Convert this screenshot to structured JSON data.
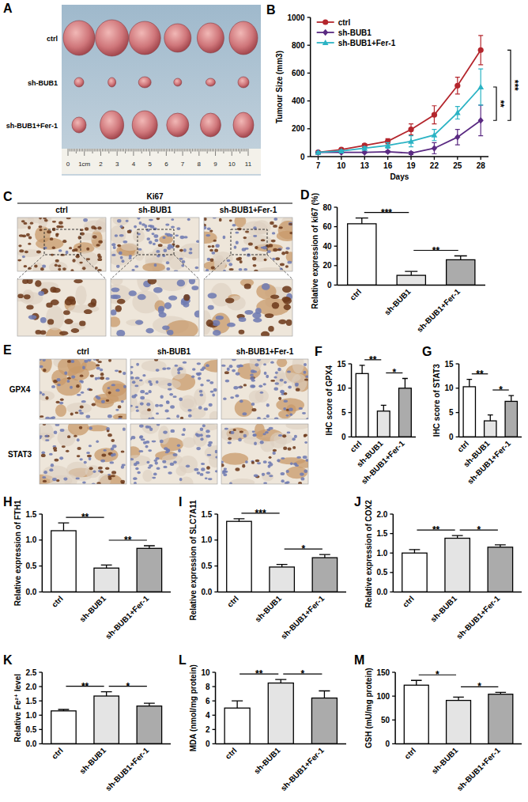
{
  "chart_data": [
    {
      "panel": "B",
      "type": "line",
      "xlabel": "Days",
      "ylabel": "Tumour Size (mm3)",
      "x": [
        7,
        10,
        13,
        16,
        19,
        22,
        25,
        28
      ],
      "xlim": [
        6,
        29
      ],
      "xticks": [
        7,
        10,
        13,
        16,
        19,
        22,
        25,
        28
      ],
      "ylim": [
        0,
        1000
      ],
      "yticks": [
        0,
        200,
        400,
        600,
        800,
        1000
      ],
      "legend": "top-left",
      "series": [
        {
          "name": "ctrl",
          "color": "#b4262d",
          "marker": "circle",
          "values": [
            30,
            50,
            80,
            110,
            195,
            300,
            510,
            765
          ],
          "errors": [
            8,
            10,
            12,
            18,
            40,
            65,
            60,
            105
          ]
        },
        {
          "name": "sh-BUB1",
          "color": "#5a2a82",
          "marker": "diamond",
          "values": [
            30,
            30,
            30,
            35,
            25,
            60,
            140,
            260
          ],
          "errors": [
            5,
            5,
            5,
            8,
            10,
            40,
            55,
            110
          ]
        },
        {
          "name": "sh-BUB1+Fer-1",
          "color": "#2bb3c4",
          "marker": "triangle",
          "values": [
            30,
            40,
            60,
            80,
            110,
            155,
            315,
            500
          ],
          "errors": [
            6,
            8,
            12,
            20,
            40,
            40,
            45,
            130
          ]
        }
      ],
      "annotations": [
        {
          "label": "**",
          "between": [
            "sh-BUB1",
            "sh-BUB1+Fer-1"
          ]
        },
        {
          "label": "***",
          "between": [
            "ctrl",
            "sh-BUB1"
          ]
        }
      ]
    },
    {
      "panel": "D",
      "type": "bar",
      "ylabel": "Relative expression of ki67 (%)",
      "categories": [
        "ctrl",
        "sh-BUB1",
        "sh-BUB1+Fer-1"
      ],
      "values": [
        63,
        10,
        26
      ],
      "errors": [
        6,
        4,
        4
      ],
      "colors": [
        "#ffffff",
        "#e4e4e4",
        "#ababab"
      ],
      "ylim": [
        0,
        80
      ],
      "yticks": [
        0,
        20,
        40,
        60,
        80
      ],
      "annotations": [
        {
          "label": "***",
          "between": [
            "ctrl",
            "sh-BUB1"
          ]
        },
        {
          "label": "**",
          "between": [
            "sh-BUB1",
            "sh-BUB1+Fer-1"
          ]
        }
      ]
    },
    {
      "panel": "F",
      "type": "bar",
      "ylabel": "IHC score of GPX4",
      "categories": [
        "ctrl",
        "sh-BUB1",
        "sh-BUB1+Fer-1"
      ],
      "values": [
        13,
        5.3,
        10
      ],
      "errors": [
        1.7,
        1.2,
        2
      ],
      "colors": [
        "#ffffff",
        "#e4e4e4",
        "#ababab"
      ],
      "ylim": [
        0,
        15
      ],
      "yticks": [
        0,
        5,
        10,
        15
      ],
      "annotations": [
        {
          "label": "**",
          "between": [
            "ctrl",
            "sh-BUB1"
          ]
        },
        {
          "label": "*",
          "between": [
            "sh-BUB1",
            "sh-BUB1+Fer-1"
          ]
        }
      ]
    },
    {
      "panel": "G",
      "type": "bar",
      "ylabel": "IHC score of STAT3",
      "categories": [
        "ctrl",
        "sh-BUB1",
        "sh-BUB1+Fer-1"
      ],
      "values": [
        10.3,
        3.3,
        7.3
      ],
      "errors": [
        1.5,
        1.2,
        1.2
      ],
      "colors": [
        "#ffffff",
        "#e4e4e4",
        "#ababab"
      ],
      "ylim": [
        0,
        15
      ],
      "yticks": [
        0,
        5,
        10,
        15
      ],
      "annotations": [
        {
          "label": "**",
          "between": [
            "ctrl",
            "sh-BUB1"
          ]
        },
        {
          "label": "*",
          "between": [
            "sh-BUB1",
            "sh-BUB1+Fer-1"
          ]
        }
      ]
    },
    {
      "panel": "H",
      "type": "bar",
      "ylabel": "Relative expression of FTH1",
      "categories": [
        "ctrl",
        "sh-BUB1",
        "sh-BUB1+Fer-1"
      ],
      "values": [
        1.18,
        0.46,
        0.84
      ],
      "errors": [
        0.15,
        0.06,
        0.05
      ],
      "colors": [
        "#ffffff",
        "#e4e4e4",
        "#ababab"
      ],
      "ylim": [
        0,
        1.5
      ],
      "yticks": [
        {
          "value": 0,
          "label": "0.0"
        },
        0.5,
        {
          "value": 1,
          "label": "1.0"
        },
        1.5
      ],
      "annotations": [
        {
          "label": "**",
          "between": [
            "ctrl",
            "sh-BUB1"
          ]
        },
        {
          "label": "**",
          "between": [
            "sh-BUB1",
            "sh-BUB1+Fer-1"
          ]
        }
      ]
    },
    {
      "panel": "I",
      "type": "bar",
      "ylabel": "Relative expression of SLC7A11",
      "categories": [
        "ctrl",
        "sh-BUB1",
        "sh-BUB1+Fer-1"
      ],
      "values": [
        1.36,
        0.48,
        0.66
      ],
      "errors": [
        0.05,
        0.05,
        0.06
      ],
      "colors": [
        "#ffffff",
        "#e4e4e4",
        "#ababab"
      ],
      "ylim": [
        0,
        1.5
      ],
      "yticks": [
        {
          "value": 0,
          "label": "0.0"
        },
        0.5,
        {
          "value": 1,
          "label": "1.0"
        },
        1.5
      ],
      "annotations": [
        {
          "label": "***",
          "between": [
            "ctrl",
            "sh-BUB1"
          ]
        },
        {
          "label": "*",
          "between": [
            "sh-BUB1",
            "sh-BUB1+Fer-1"
          ]
        }
      ]
    },
    {
      "panel": "J",
      "type": "bar",
      "ylabel": "Relative expression of COX2",
      "categories": [
        "ctrl",
        "sh-BUB1",
        "sh-BUB1+Fer-1"
      ],
      "values": [
        1.0,
        1.38,
        1.15
      ],
      "errors": [
        0.09,
        0.07,
        0.06
      ],
      "colors": [
        "#ffffff",
        "#e4e4e4",
        "#ababab"
      ],
      "ylim": [
        0,
        2
      ],
      "yticks": [
        {
          "value": 0,
          "label": "0.0"
        },
        0.5,
        {
          "value": 1,
          "label": "1.0"
        },
        1.5,
        {
          "value": 2,
          "label": "2.0"
        }
      ],
      "annotations": [
        {
          "label": "**",
          "between": [
            "ctrl",
            "sh-BUB1"
          ]
        },
        {
          "label": "*",
          "between": [
            "sh-BUB1",
            "sh-BUB1+Fer-1"
          ]
        }
      ]
    },
    {
      "panel": "K",
      "type": "bar",
      "ylabel": "Relative Fe²⁺ level",
      "categories": [
        "ctrl",
        "sh-BUB1",
        "sh-BUB1+Fer-1"
      ],
      "values": [
        1.15,
        1.67,
        1.32
      ],
      "errors": [
        0.05,
        0.15,
        0.1
      ],
      "colors": [
        "#ffffff",
        "#e4e4e4",
        "#ababab"
      ],
      "ylim": [
        0,
        2.5
      ],
      "yticks": [
        {
          "value": 0,
          "label": "0.0"
        },
        0.5,
        {
          "value": 1,
          "label": "1.0"
        },
        1.5,
        {
          "value": 2,
          "label": "2.0"
        },
        2.5
      ],
      "annotations": [
        {
          "label": "**",
          "between": [
            "ctrl",
            "sh-BUB1"
          ]
        },
        {
          "label": "*",
          "between": [
            "sh-BUB1",
            "sh-BUB1+Fer-1"
          ]
        }
      ]
    },
    {
      "panel": "L",
      "type": "bar",
      "ylabel": "MDA (nmol/mg protein)",
      "categories": [
        "ctrl",
        "sh-BUB1",
        "sh-BUB1+Fer-1"
      ],
      "values": [
        5.0,
        8.5,
        6.4
      ],
      "errors": [
        1.0,
        0.5,
        1.0
      ],
      "colors": [
        "#ffffff",
        "#e4e4e4",
        "#ababab"
      ],
      "ylim": [
        0,
        10
      ],
      "yticks": [
        0,
        2,
        4,
        6,
        8,
        10
      ],
      "annotations": [
        {
          "label": "**",
          "between": [
            "ctrl",
            "sh-BUB1"
          ]
        },
        {
          "label": "*",
          "between": [
            "sh-BUB1",
            "sh-BUB1+Fer-1"
          ]
        }
      ]
    },
    {
      "panel": "M",
      "type": "bar",
      "ylabel": "GSH (mU/mg protein)",
      "categories": [
        "ctrl",
        "sh-BUB1",
        "sh-BUB1+Fer-1"
      ],
      "values": [
        123,
        91,
        104
      ],
      "errors": [
        10,
        7,
        4
      ],
      "colors": [
        "#ffffff",
        "#e4e4e4",
        "#ababab"
      ],
      "ylim": [
        0,
        150
      ],
      "yticks": [
        0,
        50,
        100,
        150
      ],
      "annotations": [
        {
          "label": "*",
          "between": [
            "ctrl",
            "sh-BUB1"
          ]
        },
        {
          "label": "*",
          "between": [
            "sh-BUB1",
            "sh-BUB1+Fer-1"
          ]
        }
      ]
    }
  ],
  "images": [
    {
      "panel": "A",
      "type": "photo",
      "rows": [
        "ctrl",
        "sh-BUB1",
        "sh-BUB1+Fer-1"
      ],
      "ruler": [
        "0",
        "1cm",
        "2",
        "3",
        "4",
        "5",
        "6",
        "7",
        "8",
        "9",
        "10",
        "11"
      ]
    },
    {
      "panel": "C",
      "type": "ihc",
      "title": "Ki67",
      "columns": [
        "ctrl",
        "sh-BUB1",
        "sh-BUB1+Fer-1"
      ]
    },
    {
      "panel": "E",
      "type": "ihc",
      "columns": [
        "ctrl",
        "sh-BUB1",
        "sh-BUB1+Fer-1"
      ],
      "rows": [
        "GPX4",
        "STAT3"
      ]
    }
  ]
}
